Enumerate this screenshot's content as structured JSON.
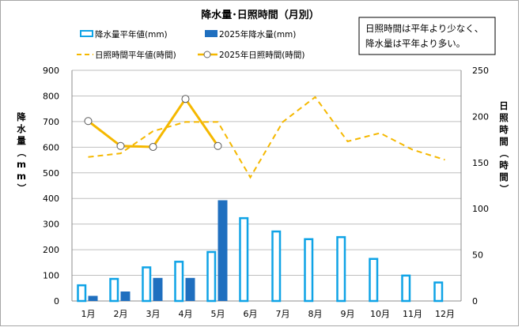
{
  "chart_data": {
    "type": "bar+line",
    "title": "降水量･日照時間（月別）",
    "categories": [
      "1月",
      "2月",
      "3月",
      "4月",
      "5月",
      "6月",
      "7月",
      "8月",
      "9月",
      "10月",
      "11月",
      "12月"
    ],
    "ylabel_left": "降水量（mm）",
    "ylabel_right": "日照時間（時間）",
    "ylim_left": [
      0,
      900
    ],
    "yticks_left": [
      0,
      100,
      200,
      300,
      400,
      500,
      600,
      700,
      800,
      900
    ],
    "ylim_right": [
      0,
      250
    ],
    "yticks_right": [
      0,
      50,
      100,
      150,
      200,
      250
    ],
    "legend_placement": "top-left",
    "grid": "horizontal",
    "series": [
      {
        "name": "降水量平年値(mm)",
        "type": "bar",
        "axis": "left",
        "style": "outline",
        "color": "#0fa3e6",
        "values": [
          65,
          90,
          135,
          157,
          195,
          327,
          275,
          245,
          253,
          168,
          103,
          76
        ]
      },
      {
        "name": "2025年降水量(mm)",
        "type": "bar",
        "axis": "left",
        "style": "filled",
        "color": "#1f6fbf",
        "values": [
          20,
          37,
          90,
          90,
          393,
          null,
          null,
          null,
          null,
          null,
          null,
          null
        ]
      },
      {
        "name": "日照時間平年値(時間)",
        "type": "line",
        "axis": "right",
        "style": "dashed",
        "color": "#f5b800",
        "values": [
          156,
          160,
          184,
          194,
          194,
          134,
          194,
          221,
          173,
          182,
          164,
          153
        ]
      },
      {
        "name": "2025年日照時間(時間)",
        "type": "line",
        "axis": "right",
        "style": "solid-markers",
        "color": "#f5b800",
        "values": [
          195,
          168,
          167,
          219,
          168,
          null,
          null,
          null,
          null,
          null,
          null,
          null
        ]
      }
    ],
    "annotation": [
      "日照時間は平年より少なく、",
      "降水量は平年より多い。"
    ]
  }
}
